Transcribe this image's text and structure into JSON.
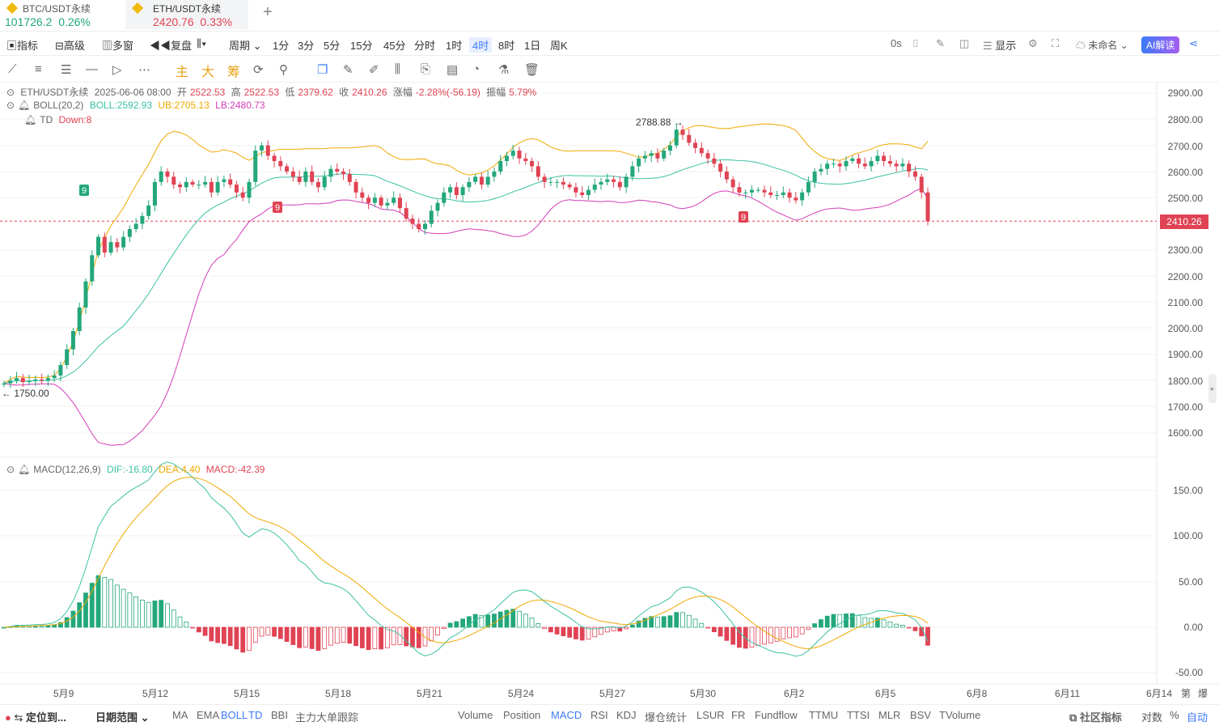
{
  "tabs": [
    {
      "name": "BTC/USDT永续",
      "price": "101726.2",
      "change": "0.26%",
      "color": "#23a77b"
    },
    {
      "name": "ETH/USDT永续",
      "price": "2420.76",
      "change": "0.33%",
      "color": "#e04354"
    }
  ],
  "add_tab": "+",
  "toolbar1": {
    "indicator": "指标",
    "advanced": "高级",
    "multi": "多窗",
    "replay": "复盘",
    "period": "周期",
    "intervals": [
      "1分",
      "3分",
      "5分",
      "15分",
      "45分",
      "分时",
      "1时",
      "4时",
      "8时",
      "1日",
      "周K"
    ],
    "active_interval": "4时",
    "countdown": "0s",
    "display": "显示",
    "unnamed": "未命名",
    "ai": "AI解读"
  },
  "toolbar2": {
    "zhu": "主",
    "da": "大",
    "chou": "筹"
  },
  "legend_main": {
    "symbol": "ETH/USDT永续",
    "datetime": "2025-06-06 08:00",
    "open_label": "开",
    "open": "2522.53",
    "high_label": "高",
    "high": "2522.53",
    "low_label": "低",
    "low": "2379.62",
    "close_label": "收",
    "close": "2410.26",
    "chg_label": "涨幅",
    "chg": "-2.28%(-56.19)",
    "amp_label": "振幅",
    "amp": "5.79%"
  },
  "legend_boll": {
    "name": "BOLL(20,2)",
    "boll": "BOLL:2592.93",
    "ub": "UB:2705.13",
    "lb": "LB:2480.73"
  },
  "legend_td": {
    "name": "TD",
    "down": "Down:8"
  },
  "legend_macd": {
    "name": "MACD(12,26,9)",
    "dif": "DIF:-16.80",
    "dea": "DEA:4.40",
    "macd": "MACD:-42.39"
  },
  "price_axis": [
    "2900.00",
    "2800.00",
    "2700.00",
    "2600.00",
    "2500.00",
    "2300.00",
    "2200.00",
    "2100.00",
    "2000.00",
    "1900.00",
    "1800.00",
    "1700.00",
    "1600.00"
  ],
  "current_price": "2410.26",
  "macd_axis": [
    "150.00",
    "100.00",
    "50.00",
    "0.00",
    "-50.00"
  ],
  "x_axis": [
    "5月9",
    "5月12",
    "5月15",
    "5月18",
    "5月21",
    "5月24",
    "5月27",
    "5月30",
    "6月2",
    "6月5",
    "6月8",
    "6月11",
    "6月14"
  ],
  "x_tail": [
    "第",
    "爆"
  ],
  "annotations": {
    "high": "2788.88 →",
    "low": "← 1750.00",
    "td9": "9"
  },
  "bottom": {
    "locate": "定位到...",
    "range": "日期范围",
    "main_ind": [
      "MA",
      "EMA",
      "BOLL",
      "TD",
      "BBI",
      "主力大单跟踪"
    ],
    "active_main": [
      "BOLL",
      "TD"
    ],
    "sub_ind": [
      "Volume",
      "Position",
      "MACD",
      "RSI",
      "KDJ",
      "爆仓统计",
      "LSUR",
      "FR",
      "Fundflow",
      "TTMU",
      "TTSI",
      "MLR",
      "BSV",
      "TVolume"
    ],
    "active_sub": [
      "MACD"
    ],
    "community": "社区指标",
    "log": "对数",
    "pct": "%",
    "auto": "自动"
  },
  "colors": {
    "up": "#23a77b",
    "down": "#e04354",
    "boll_mid": "#3cc2a5",
    "boll_ub": "#f0a800",
    "boll_lb": "#d33eb8",
    "accent": "#3d7bf7"
  },
  "chart_data": {
    "type": "candlestick",
    "title": "ETH/USDT永续 4时",
    "ylim": [
      1550,
      2950
    ],
    "x_range": [
      "5月8",
      "6月14"
    ],
    "ohlc_close_series": [
      1790,
      1800,
      1810,
      1795,
      1800,
      1805,
      1800,
      1810,
      1820,
      1860,
      1920,
      1990,
      2080,
      2180,
      2280,
      2350,
      2290,
      2330,
      2310,
      2350,
      2380,
      2400,
      2430,
      2470,
      2560,
      2600,
      2580,
      2550,
      2540,
      2560,
      2550,
      2550,
      2560,
      2520,
      2560,
      2570,
      2550,
      2520,
      2500,
      2560,
      2680,
      2700,
      2660,
      2640,
      2620,
      2600,
      2580,
      2560,
      2600,
      2560,
      2540,
      2580,
      2610,
      2600,
      2590,
      2560,
      2520,
      2500,
      2480,
      2500,
      2470,
      2480,
      2500,
      2460,
      2420,
      2400,
      2380,
      2400,
      2450,
      2480,
      2520,
      2540,
      2510,
      2540,
      2560,
      2580,
      2550,
      2580,
      2600,
      2640,
      2660,
      2680,
      2650,
      2640,
      2620,
      2580,
      2560,
      2560,
      2560,
      2550,
      2540,
      2520,
      2510,
      2530,
      2550,
      2560,
      2570,
      2560,
      2540,
      2580,
      2620,
      2650,
      2660,
      2670,
      2650,
      2680,
      2700,
      2760,
      2740,
      2710,
      2690,
      2670,
      2650,
      2630,
      2600,
      2570,
      2540,
      2520,
      2520,
      2530,
      2530,
      2520,
      2510,
      2510,
      2520,
      2500,
      2490,
      2520,
      2560,
      2600,
      2610,
      2630,
      2630,
      2620,
      2640,
      2650,
      2630,
      2620,
      2640,
      2660,
      2640,
      2630,
      2620,
      2630,
      2600,
      2580,
      2520,
      2410
    ],
    "boll": {
      "mid_last": 2592.93,
      "ub_last": 2705.13,
      "lb_last": 2480.73
    },
    "macd": {
      "dif": -16.8,
      "dea": 4.4,
      "hist": -42.39,
      "ylim": [
        -55,
        160
      ]
    }
  }
}
